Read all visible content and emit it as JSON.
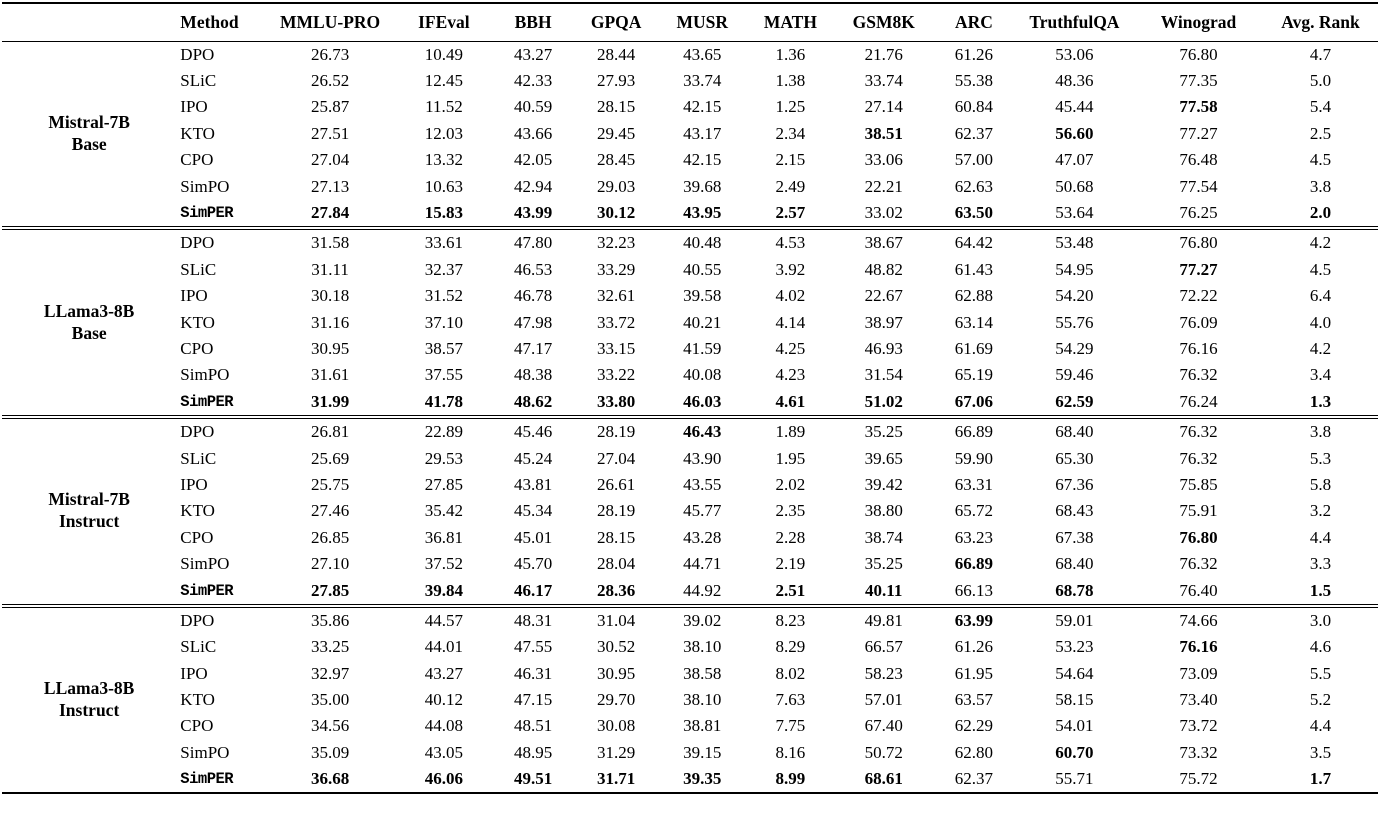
{
  "table": {
    "headers": [
      "Method",
      "MMLU-PRO",
      "IFEval",
      "BBH",
      "GPQA",
      "MUSR",
      "MATH",
      "GSM8K",
      "ARC",
      "TruthfulQA",
      "Winograd",
      "Avg. Rank"
    ],
    "sections": [
      {
        "model_line1": "Mistral-7B",
        "model_line2": "Base",
        "rows": [
          {
            "method": "DPO",
            "mono": false,
            "values": [
              "26.73",
              "10.49",
              "43.27",
              "28.44",
              "43.65",
              "1.36",
              "21.76",
              "61.26",
              "53.06",
              "76.80",
              "4.7"
            ],
            "bold": [
              0,
              0,
              0,
              0,
              0,
              0,
              0,
              0,
              0,
              0,
              0
            ]
          },
          {
            "method": "SLiC",
            "mono": false,
            "values": [
              "26.52",
              "12.45",
              "42.33",
              "27.93",
              "33.74",
              "1.38",
              "33.74",
              "55.38",
              "48.36",
              "77.35",
              "5.0"
            ],
            "bold": [
              0,
              0,
              0,
              0,
              0,
              0,
              0,
              0,
              0,
              0,
              0
            ]
          },
          {
            "method": "IPO",
            "mono": false,
            "values": [
              "25.87",
              "11.52",
              "40.59",
              "28.15",
              "42.15",
              "1.25",
              "27.14",
              "60.84",
              "45.44",
              "77.58",
              "5.4"
            ],
            "bold": [
              0,
              0,
              0,
              0,
              0,
              0,
              0,
              0,
              0,
              1,
              0
            ]
          },
          {
            "method": "KTO",
            "mono": false,
            "values": [
              "27.51",
              "12.03",
              "43.66",
              "29.45",
              "43.17",
              "2.34",
              "38.51",
              "62.37",
              "56.60",
              "77.27",
              "2.5"
            ],
            "bold": [
              0,
              0,
              0,
              0,
              0,
              0,
              1,
              0,
              1,
              0,
              0
            ]
          },
          {
            "method": "CPO",
            "mono": false,
            "values": [
              "27.04",
              "13.32",
              "42.05",
              "28.45",
              "42.15",
              "2.15",
              "33.06",
              "57.00",
              "47.07",
              "76.48",
              "4.5"
            ],
            "bold": [
              0,
              0,
              0,
              0,
              0,
              0,
              0,
              0,
              0,
              0,
              0
            ]
          },
          {
            "method": "SimPO",
            "mono": false,
            "values": [
              "27.13",
              "10.63",
              "42.94",
              "29.03",
              "39.68",
              "2.49",
              "22.21",
              "62.63",
              "50.68",
              "77.54",
              "3.8"
            ],
            "bold": [
              0,
              0,
              0,
              0,
              0,
              0,
              0,
              0,
              0,
              0,
              0
            ]
          },
          {
            "method": "SimPER",
            "mono": true,
            "values": [
              "27.84",
              "15.83",
              "43.99",
              "30.12",
              "43.95",
              "2.57",
              "33.02",
              "63.50",
              "53.64",
              "76.25",
              "2.0"
            ],
            "bold": [
              1,
              1,
              1,
              1,
              1,
              1,
              0,
              1,
              0,
              0,
              1
            ]
          }
        ]
      },
      {
        "model_line1": "LLama3-8B",
        "model_line2": "Base",
        "rows": [
          {
            "method": "DPO",
            "mono": false,
            "values": [
              "31.58",
              "33.61",
              "47.80",
              "32.23",
              "40.48",
              "4.53",
              "38.67",
              "64.42",
              "53.48",
              "76.80",
              "4.2"
            ],
            "bold": [
              0,
              0,
              0,
              0,
              0,
              0,
              0,
              0,
              0,
              0,
              0
            ]
          },
          {
            "method": "SLiC",
            "mono": false,
            "values": [
              "31.11",
              "32.37",
              "46.53",
              "33.29",
              "40.55",
              "3.92",
              "48.82",
              "61.43",
              "54.95",
              "77.27",
              "4.5"
            ],
            "bold": [
              0,
              0,
              0,
              0,
              0,
              0,
              0,
              0,
              0,
              1,
              0
            ]
          },
          {
            "method": "IPO",
            "mono": false,
            "values": [
              "30.18",
              "31.52",
              "46.78",
              "32.61",
              "39.58",
              "4.02",
              "22.67",
              "62.88",
              "54.20",
              "72.22",
              "6.4"
            ],
            "bold": [
              0,
              0,
              0,
              0,
              0,
              0,
              0,
              0,
              0,
              0,
              0
            ]
          },
          {
            "method": "KTO",
            "mono": false,
            "values": [
              "31.16",
              "37.10",
              "47.98",
              "33.72",
              "40.21",
              "4.14",
              "38.97",
              "63.14",
              "55.76",
              "76.09",
              "4.0"
            ],
            "bold": [
              0,
              0,
              0,
              0,
              0,
              0,
              0,
              0,
              0,
              0,
              0
            ]
          },
          {
            "method": "CPO",
            "mono": false,
            "values": [
              "30.95",
              "38.57",
              "47.17",
              "33.15",
              "41.59",
              "4.25",
              "46.93",
              "61.69",
              "54.29",
              "76.16",
              "4.2"
            ],
            "bold": [
              0,
              0,
              0,
              0,
              0,
              0,
              0,
              0,
              0,
              0,
              0
            ]
          },
          {
            "method": "SimPO",
            "mono": false,
            "values": [
              "31.61",
              "37.55",
              "48.38",
              "33.22",
              "40.08",
              "4.23",
              "31.54",
              "65.19",
              "59.46",
              "76.32",
              "3.4"
            ],
            "bold": [
              0,
              0,
              0,
              0,
              0,
              0,
              0,
              0,
              0,
              0,
              0
            ]
          },
          {
            "method": "SimPER",
            "mono": true,
            "values": [
              "31.99",
              "41.78",
              "48.62",
              "33.80",
              "46.03",
              "4.61",
              "51.02",
              "67.06",
              "62.59",
              "76.24",
              "1.3"
            ],
            "bold": [
              1,
              1,
              1,
              1,
              1,
              1,
              1,
              1,
              1,
              0,
              1
            ]
          }
        ]
      },
      {
        "model_line1": "Mistral-7B",
        "model_line2": "Instruct",
        "rows": [
          {
            "method": "DPO",
            "mono": false,
            "values": [
              "26.81",
              "22.89",
              "45.46",
              "28.19",
              "46.43",
              "1.89",
              "35.25",
              "66.89",
              "68.40",
              "76.32",
              "3.8"
            ],
            "bold": [
              0,
              0,
              0,
              0,
              1,
              0,
              0,
              0,
              0,
              0,
              0
            ]
          },
          {
            "method": "SLiC",
            "mono": false,
            "values": [
              "25.69",
              "29.53",
              "45.24",
              "27.04",
              "43.90",
              "1.95",
              "39.65",
              "59.90",
              "65.30",
              "76.32",
              "5.3"
            ],
            "bold": [
              0,
              0,
              0,
              0,
              0,
              0,
              0,
              0,
              0,
              0,
              0
            ]
          },
          {
            "method": "IPO",
            "mono": false,
            "values": [
              "25.75",
              "27.85",
              "43.81",
              "26.61",
              "43.55",
              "2.02",
              "39.42",
              "63.31",
              "67.36",
              "75.85",
              "5.8"
            ],
            "bold": [
              0,
              0,
              0,
              0,
              0,
              0,
              0,
              0,
              0,
              0,
              0
            ]
          },
          {
            "method": "KTO",
            "mono": false,
            "values": [
              "27.46",
              "35.42",
              "45.34",
              "28.19",
              "45.77",
              "2.35",
              "38.80",
              "65.72",
              "68.43",
              "75.91",
              "3.2"
            ],
            "bold": [
              0,
              0,
              0,
              0,
              0,
              0,
              0,
              0,
              0,
              0,
              0
            ]
          },
          {
            "method": "CPO",
            "mono": false,
            "values": [
              "26.85",
              "36.81",
              "45.01",
              "28.15",
              "43.28",
              "2.28",
              "38.74",
              "63.23",
              "67.38",
              "76.80",
              "4.4"
            ],
            "bold": [
              0,
              0,
              0,
              0,
              0,
              0,
              0,
              0,
              0,
              1,
              0
            ]
          },
          {
            "method": "SimPO",
            "mono": false,
            "values": [
              "27.10",
              "37.52",
              "45.70",
              "28.04",
              "44.71",
              "2.19",
              "35.25",
              "66.89",
              "68.40",
              "76.32",
              "3.3"
            ],
            "bold": [
              0,
              0,
              0,
              0,
              0,
              0,
              0,
              1,
              0,
              0,
              0
            ]
          },
          {
            "method": "SimPER",
            "mono": true,
            "values": [
              "27.85",
              "39.84",
              "46.17",
              "28.36",
              "44.92",
              "2.51",
              "40.11",
              "66.13",
              "68.78",
              "76.40",
              "1.5"
            ],
            "bold": [
              1,
              1,
              1,
              1,
              0,
              1,
              1,
              0,
              1,
              0,
              1
            ]
          }
        ]
      },
      {
        "model_line1": "LLama3-8B",
        "model_line2": "Instruct",
        "rows": [
          {
            "method": "DPO",
            "mono": false,
            "values": [
              "35.86",
              "44.57",
              "48.31",
              "31.04",
              "39.02",
              "8.23",
              "49.81",
              "63.99",
              "59.01",
              "74.66",
              "3.0"
            ],
            "bold": [
              0,
              0,
              0,
              0,
              0,
              0,
              0,
              1,
              0,
              0,
              0
            ]
          },
          {
            "method": "SLiC",
            "mono": false,
            "values": [
              "33.25",
              "44.01",
              "47.55",
              "30.52",
              "38.10",
              "8.29",
              "66.57",
              "61.26",
              "53.23",
              "76.16",
              "4.6"
            ],
            "bold": [
              0,
              0,
              0,
              0,
              0,
              0,
              0,
              0,
              0,
              1,
              0
            ]
          },
          {
            "method": "IPO",
            "mono": false,
            "values": [
              "32.97",
              "43.27",
              "46.31",
              "30.95",
              "38.58",
              "8.02",
              "58.23",
              "61.95",
              "54.64",
              "73.09",
              "5.5"
            ],
            "bold": [
              0,
              0,
              0,
              0,
              0,
              0,
              0,
              0,
              0,
              0,
              0
            ]
          },
          {
            "method": "KTO",
            "mono": false,
            "values": [
              "35.00",
              "40.12",
              "47.15",
              "29.70",
              "38.10",
              "7.63",
              "57.01",
              "63.57",
              "58.15",
              "73.40",
              "5.2"
            ],
            "bold": [
              0,
              0,
              0,
              0,
              0,
              0,
              0,
              0,
              0,
              0,
              0
            ]
          },
          {
            "method": "CPO",
            "mono": false,
            "values": [
              "34.56",
              "44.08",
              "48.51",
              "30.08",
              "38.81",
              "7.75",
              "67.40",
              "62.29",
              "54.01",
              "73.72",
              "4.4"
            ],
            "bold": [
              0,
              0,
              0,
              0,
              0,
              0,
              0,
              0,
              0,
              0,
              0
            ]
          },
          {
            "method": "SimPO",
            "mono": false,
            "values": [
              "35.09",
              "43.05",
              "48.95",
              "31.29",
              "39.15",
              "8.16",
              "50.72",
              "62.80",
              "60.70",
              "73.32",
              "3.5"
            ],
            "bold": [
              0,
              0,
              0,
              0,
              0,
              0,
              0,
              0,
              1,
              0,
              0
            ]
          },
          {
            "method": "SimPER",
            "mono": true,
            "values": [
              "36.68",
              "46.06",
              "49.51",
              "31.71",
              "39.35",
              "8.99",
              "68.61",
              "62.37",
              "55.71",
              "75.72",
              "1.7"
            ],
            "bold": [
              1,
              1,
              1,
              1,
              1,
              1,
              1,
              0,
              0,
              0,
              1
            ]
          }
        ]
      }
    ]
  }
}
